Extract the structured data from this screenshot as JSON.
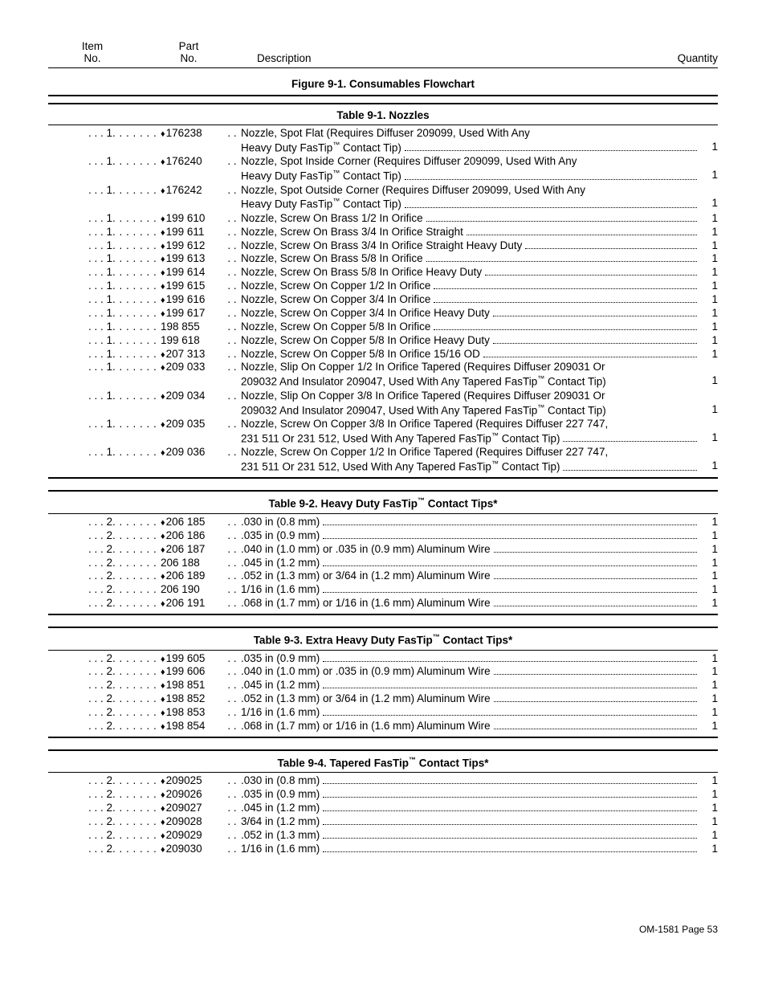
{
  "header": {
    "item_l1": "Item",
    "item_l2": "No.",
    "part_l1": "Part",
    "part_l2": "No.",
    "desc": "Description",
    "qty": "Quantity"
  },
  "figure_title": "Figure 9-1. Consumables Flowchart",
  "sections": [
    {
      "title": "Table 9-1. Nozzles",
      "rows": [
        {
          "item": "1",
          "diamond": true,
          "part": "176238",
          "desc": "Nozzle, Spot Flat (Requires Diffuser 209099, Used With Any",
          "cont": [
            "Heavy Duty FasTip™ Contact Tip)"
          ],
          "qty": "1"
        },
        {
          "item": "1",
          "diamond": true,
          "part": "176240",
          "desc": "Nozzle, Spot Inside Corner (Requires Diffuser 209099, Used With Any",
          "cont": [
            "Heavy Duty FasTip™ Contact Tip)"
          ],
          "qty": "1"
        },
        {
          "item": "1",
          "diamond": true,
          "part": "176242",
          "desc": "Nozzle, Spot Outside Corner (Requires Diffuser 209099, Used With Any",
          "cont": [
            "Heavy Duty FasTip™ Contact Tip)"
          ],
          "qty": "1"
        },
        {
          "item": "1",
          "diamond": true,
          "part": "199 610",
          "desc": "Nozzle, Screw On Brass 1/2 In Orifice",
          "qty": "1"
        },
        {
          "item": "1",
          "diamond": true,
          "part": "199 611",
          "desc": "Nozzle, Screw On Brass 3/4 In Orifice Straight",
          "qty": "1"
        },
        {
          "item": "1",
          "diamond": true,
          "part": "199 612",
          "desc": "Nozzle, Screw On Brass 3/4 In Orifice Straight Heavy Duty",
          "qty": "1"
        },
        {
          "item": "1",
          "diamond": true,
          "part": "199 613",
          "desc": "Nozzle, Screw On Brass 5/8 In Orifice",
          "qty": "1"
        },
        {
          "item": "1",
          "diamond": true,
          "part": "199 614",
          "desc": "Nozzle, Screw On Brass 5/8 In Orifice Heavy Duty",
          "qty": "1"
        },
        {
          "item": "1",
          "diamond": true,
          "part": "199 615",
          "desc": "Nozzle, Screw On Copper 1/2 In Orifice",
          "qty": "1"
        },
        {
          "item": "1",
          "diamond": true,
          "part": "199 616",
          "desc": "Nozzle, Screw On Copper 3/4 In Orifice",
          "qty": "1"
        },
        {
          "item": "1",
          "diamond": true,
          "part": "199 617",
          "desc": "Nozzle, Screw On Copper 3/4 In Orifice Heavy Duty",
          "qty": "1"
        },
        {
          "item": "1",
          "diamond": false,
          "part": "198 855",
          "desc": "Nozzle, Screw On Copper 5/8 In Orifice",
          "qty": "1"
        },
        {
          "item": "1",
          "diamond": false,
          "part": "199 618",
          "desc": "Nozzle, Screw On Copper 5/8 In Orifice Heavy Duty",
          "qty": "1"
        },
        {
          "item": "1",
          "diamond": true,
          "part": "207 313",
          "desc": "Nozzle, Screw On Copper 5/8 In Orifice 15/16 OD",
          "qty": "1"
        },
        {
          "item": "1",
          "diamond": true,
          "part": "209 033",
          "desc": "Nozzle, Slip On Copper 1/2 In Orifice Tapered (Requires Diffuser 209031 Or",
          "cont": [
            "209032 And Insulator 209047, Used With Any Tapered FasTip™ Contact Tip)"
          ],
          "qty_tight": "1"
        },
        {
          "item": "1",
          "diamond": true,
          "part": "209 034",
          "desc": "Nozzle, Slip On Copper 3/8 In Orifice Tapered (Requires Diffuser 209031 Or",
          "cont": [
            "209032 And Insulator 209047, Used With Any Tapered FasTip™ Contact Tip)"
          ],
          "qty_tight": "1"
        },
        {
          "item": "1",
          "diamond": true,
          "part": "209 035",
          "desc": "Nozzle, Screw On Copper 3/8 In Orifice Tapered (Requires Diffuser 227 747,",
          "cont": [
            "231 511 Or 231 512, Used With Any Tapered FasTip™ Contact Tip)"
          ],
          "qty": "1"
        },
        {
          "item": "1",
          "diamond": true,
          "part": "209 036",
          "desc": "Nozzle, Screw On Copper 1/2 In Orifice Tapered (Requires Diffuser 227 747,",
          "cont": [
            "231 511 Or 231 512, Used With Any Tapered FasTip™ Contact Tip)"
          ],
          "qty": "1"
        }
      ]
    },
    {
      "title": "Table 9-2. Heavy Duty FasTip™ Contact Tips*",
      "rows": [
        {
          "item": "2",
          "diamond": true,
          "part": "206 185",
          "desc": ".030 in (0.8 mm)",
          "qty": "1"
        },
        {
          "item": "2",
          "diamond": true,
          "part": "206 186",
          "desc": ".035 in (0.9 mm)",
          "qty": "1"
        },
        {
          "item": "2",
          "diamond": true,
          "part": "206 187",
          "desc": ".040 in (1.0 mm) or .035 in (0.9 mm) Aluminum Wire",
          "qty": "1"
        },
        {
          "item": "2",
          "diamond": false,
          "part": "206 188",
          "desc": ".045 in (1.2 mm)",
          "qty": "1"
        },
        {
          "item": "2",
          "diamond": true,
          "part": "206 189",
          "desc": ".052 in (1.3 mm) or 3/64 in (1.2 mm) Aluminum Wire",
          "qty": "1"
        },
        {
          "item": "2",
          "diamond": false,
          "part": "206 190",
          "desc": "1/16 in (1.6 mm)",
          "qty": "1"
        },
        {
          "item": "2",
          "diamond": true,
          "part": "206 191",
          "desc": ".068 in (1.7 mm) or 1/16 in (1.6 mm) Aluminum Wire",
          "qty": "1"
        }
      ]
    },
    {
      "title": "Table 9-3. Extra Heavy Duty FasTip™ Contact Tips*",
      "rows": [
        {
          "item": "2",
          "diamond": true,
          "part": "199 605",
          "desc": ".035 in (0.9 mm)",
          "qty": "1"
        },
        {
          "item": "2",
          "diamond": true,
          "part": "199 606",
          "desc": ".040 in (1.0 mm) or .035 in (0.9 mm) Aluminum Wire",
          "qty": "1"
        },
        {
          "item": "2",
          "diamond": true,
          "part": "198 851",
          "desc": ".045 in (1.2 mm)",
          "qty": "1"
        },
        {
          "item": "2",
          "diamond": true,
          "part": "198 852",
          "desc": ".052 in (1.3 mm) or 3/64 in (1.2 mm) Aluminum Wire",
          "qty": "1"
        },
        {
          "item": "2",
          "diamond": true,
          "part": "198 853",
          "desc": "1/16 in (1.6 mm)",
          "qty": "1"
        },
        {
          "item": "2",
          "diamond": true,
          "part": "198 854",
          "desc": ".068 in (1.7 mm) or 1/16 in (1.6 mm) Aluminum Wire",
          "qty": "1"
        }
      ]
    },
    {
      "title": "Table 9-4. Tapered FasTip™  Contact Tips*",
      "noborder": true,
      "rows": [
        {
          "item": "2",
          "diamond": true,
          "part": "209025",
          "desc": ".030 in (0.8 mm)",
          "qty": "1"
        },
        {
          "item": "2",
          "diamond": true,
          "part": "209026",
          "desc": ".035 in (0.9 mm)",
          "qty": "1"
        },
        {
          "item": "2",
          "diamond": true,
          "part": "209027",
          "desc": ".045 in (1.2 mm)",
          "qty": "1"
        },
        {
          "item": "2",
          "diamond": true,
          "part": "209028",
          "desc": "3/64 in (1.2 mm)",
          "qty": "1"
        },
        {
          "item": "2",
          "diamond": true,
          "part": "209029",
          "desc": ".052 in (1.3 mm)",
          "qty": "1"
        },
        {
          "item": "2",
          "diamond": true,
          "part": "209030",
          "desc": "1/16 in (1.6 mm)",
          "qty": "1"
        }
      ]
    }
  ],
  "footer": "OM-1581 Page 53"
}
